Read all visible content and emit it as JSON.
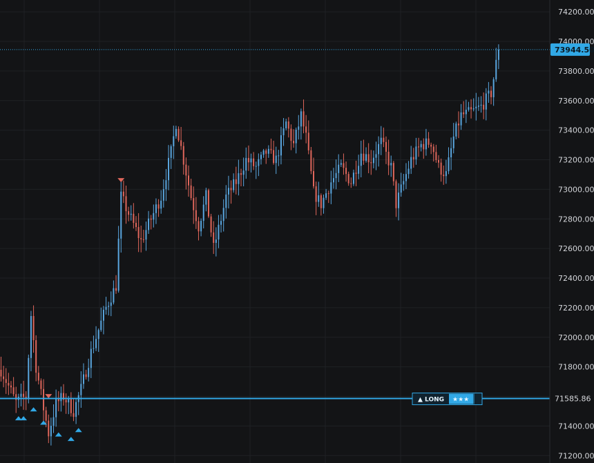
{
  "chart_data": {
    "type": "candlestick",
    "ylim": [
      71150,
      74280
    ],
    "bar_count": 200,
    "grid": true,
    "y_ticks": [
      "74200.00",
      "74000.00",
      "73800.00",
      "73600.00",
      "73400.00",
      "73200.00",
      "73000.00",
      "72800.00",
      "72600.00",
      "72400.00",
      "72200.00",
      "72000.00",
      "71800.00",
      "71600.00",
      "71400.00",
      "71200.00"
    ],
    "anchor_path": [
      [
        0,
        71780
      ],
      [
        6,
        71560
      ],
      [
        10,
        71600
      ],
      [
        12,
        72150
      ],
      [
        14,
        71800
      ],
      [
        17,
        71520
      ],
      [
        19,
        71350
      ],
      [
        22,
        71550
      ],
      [
        25,
        71600
      ],
      [
        29,
        71500
      ],
      [
        32,
        71650
      ],
      [
        36,
        71900
      ],
      [
        42,
        72200
      ],
      [
        46,
        72350
      ],
      [
        48,
        72950
      ],
      [
        52,
        72800
      ],
      [
        56,
        72650
      ],
      [
        60,
        72800
      ],
      [
        64,
        72950
      ],
      [
        68,
        73250
      ],
      [
        70,
        73450
      ],
      [
        73,
        73200
      ],
      [
        76,
        72950
      ],
      [
        79,
        72750
      ],
      [
        82,
        72950
      ],
      [
        85,
        72600
      ],
      [
        88,
        72800
      ],
      [
        90,
        72950
      ],
      [
        94,
        73050
      ],
      [
        98,
        73200
      ],
      [
        102,
        73150
      ],
      [
        106,
        73250
      ],
      [
        110,
        73200
      ],
      [
        114,
        73450
      ],
      [
        117,
        73300
      ],
      [
        120,
        73500
      ],
      [
        122,
        73350
      ],
      [
        125,
        72980
      ],
      [
        128,
        72900
      ],
      [
        132,
        73050
      ],
      [
        136,
        73150
      ],
      [
        140,
        73050
      ],
      [
        144,
        73250
      ],
      [
        148,
        73200
      ],
      [
        152,
        73320
      ],
      [
        156,
        73150
      ],
      [
        158,
        72900
      ],
      [
        161,
        73050
      ],
      [
        164,
        73200
      ],
      [
        168,
        73300
      ],
      [
        172,
        73320
      ],
      [
        175,
        73150
      ],
      [
        178,
        73100
      ],
      [
        181,
        73350
      ],
      [
        184,
        73500
      ],
      [
        188,
        73520
      ],
      [
        192,
        73560
      ],
      [
        196,
        73650
      ],
      [
        198,
        73850
      ],
      [
        199,
        73944.5
      ]
    ],
    "markers": [
      {
        "bar": 7,
        "direction": "up",
        "price": 71560
      },
      {
        "bar": 9,
        "direction": "up",
        "price": 71560
      },
      {
        "bar": 13,
        "direction": "up",
        "price": 71620
      },
      {
        "bar": 17,
        "direction": "up",
        "price": 71530
      },
      {
        "bar": 19,
        "direction": "down",
        "price": 71560
      },
      {
        "bar": 23,
        "direction": "up",
        "price": 71450
      },
      {
        "bar": 28,
        "direction": "up",
        "price": 71420
      },
      {
        "bar": 31,
        "direction": "up",
        "price": 71480
      },
      {
        "bar": 48,
        "direction": "down",
        "price": 73020
      }
    ],
    "last_price": 73944.5,
    "last_price_label": "73944.50",
    "level_price": 71585.86,
    "level_price_label": "71585.86",
    "position_badge": {
      "side": "▲ LONG",
      "rating": "★★★"
    }
  },
  "colors": {
    "background": "#131416",
    "grid": "#1f2124",
    "up_candle": "#5aa7e0",
    "down_candle": "#e0675c",
    "accent": "#31a8e6",
    "axis_text": "#d4d6da"
  }
}
